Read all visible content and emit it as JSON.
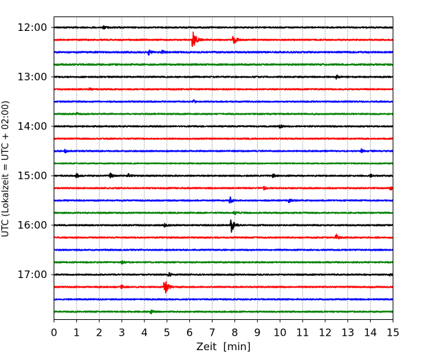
{
  "chart_data": {
    "type": "line",
    "title": "",
    "xlabel": "Zeit  [min]",
    "ylabel": "UTC (Lokalzeit = UTC + 02:00)",
    "xlim": [
      0,
      15
    ],
    "x_ticks": [
      "0",
      "1",
      "2",
      "3",
      "4",
      "5",
      "6",
      "7",
      "8",
      "9",
      "10",
      "11",
      "12",
      "13",
      "14",
      "15"
    ],
    "x_grid": true,
    "y_grid": false,
    "legend": "none",
    "y_start": "12:00",
    "trace_interval_min": 15,
    "trace_colors": [
      "#000000",
      "#ff0000",
      "#0000ff",
      "#008000"
    ],
    "y_ticks": [
      "12:00",
      "13:00",
      "14:00",
      "15:00",
      "16:00",
      "17:00"
    ],
    "series": [
      {
        "start": "12:00",
        "color": "#000000",
        "noise": 0.6,
        "events": [
          {
            "t": 2.2,
            "amp": 1.2
          }
        ]
      },
      {
        "start": "12:15",
        "color": "#ff0000",
        "noise": 0.6,
        "events": [
          {
            "t": 6.15,
            "amp": 8
          },
          {
            "t": 7.95,
            "amp": 4
          }
        ]
      },
      {
        "start": "12:30",
        "color": "#0000ff",
        "noise": 0.7,
        "events": [
          {
            "t": 4.2,
            "amp": 2.2
          },
          {
            "t": 4.8,
            "amp": 1.5
          }
        ]
      },
      {
        "start": "12:45",
        "color": "#008000",
        "noise": 0.7,
        "events": []
      },
      {
        "start": "13:00",
        "color": "#000000",
        "noise": 0.6,
        "events": [
          {
            "t": 12.5,
            "amp": 1.8
          }
        ]
      },
      {
        "start": "13:15",
        "color": "#ff0000",
        "noise": 0.6,
        "events": [
          {
            "t": 1.6,
            "amp": 1.2
          }
        ]
      },
      {
        "start": "13:30",
        "color": "#0000ff",
        "noise": 0.6,
        "events": [
          {
            "t": 6.2,
            "amp": 1.2
          }
        ]
      },
      {
        "start": "13:45",
        "color": "#008000",
        "noise": 0.6,
        "events": [
          {
            "t": 1.0,
            "amp": 1.0
          }
        ]
      },
      {
        "start": "14:00",
        "color": "#000000",
        "noise": 0.6,
        "events": [
          {
            "t": 10.0,
            "amp": 1.6
          }
        ]
      },
      {
        "start": "14:15",
        "color": "#ff0000",
        "noise": 0.6,
        "events": []
      },
      {
        "start": "14:30",
        "color": "#0000ff",
        "noise": 0.6,
        "events": [
          {
            "t": 0.5,
            "amp": 1.5
          },
          {
            "t": 13.6,
            "amp": 1.5
          }
        ]
      },
      {
        "start": "14:45",
        "color": "#008000",
        "noise": 0.5,
        "events": []
      },
      {
        "start": "15:00",
        "color": "#000000",
        "noise": 0.6,
        "events": [
          {
            "t": 1.0,
            "amp": 2.0
          },
          {
            "t": 2.5,
            "amp": 2.0
          },
          {
            "t": 3.3,
            "amp": 1.6
          },
          {
            "t": 9.7,
            "amp": 1.4
          },
          {
            "t": 14.0,
            "amp": 1.2
          }
        ]
      },
      {
        "start": "15:15",
        "color": "#ff0000",
        "noise": 0.6,
        "events": [
          {
            "t": 9.3,
            "amp": 1.4
          },
          {
            "t": 14.9,
            "amp": 1.8
          }
        ]
      },
      {
        "start": "15:30",
        "color": "#0000ff",
        "noise": 0.6,
        "events": [
          {
            "t": 7.8,
            "amp": 3.0
          },
          {
            "t": 10.4,
            "amp": 1.8
          }
        ]
      },
      {
        "start": "15:45",
        "color": "#008000",
        "noise": 0.6,
        "events": [
          {
            "t": 8.0,
            "amp": 1.4
          }
        ]
      },
      {
        "start": "16:00",
        "color": "#000000",
        "noise": 0.6,
        "events": [
          {
            "t": 4.9,
            "amp": 1.6
          },
          {
            "t": 7.85,
            "amp": 6.0
          }
        ]
      },
      {
        "start": "16:15",
        "color": "#ff0000",
        "noise": 0.6,
        "events": [
          {
            "t": 12.5,
            "amp": 2.5
          }
        ]
      },
      {
        "start": "16:30",
        "color": "#0000ff",
        "noise": 0.6,
        "events": []
      },
      {
        "start": "16:45",
        "color": "#008000",
        "noise": 0.6,
        "events": [
          {
            "t": 3.0,
            "amp": 1.2
          }
        ]
      },
      {
        "start": "17:00",
        "color": "#000000",
        "noise": 0.6,
        "events": [
          {
            "t": 5.1,
            "amp": 1.6
          },
          {
            "t": 14.9,
            "amp": 1.5
          }
        ]
      },
      {
        "start": "17:15",
        "color": "#ff0000",
        "noise": 0.6,
        "events": [
          {
            "t": 3.0,
            "amp": 1.8
          },
          {
            "t": 4.9,
            "amp": 7.0
          }
        ]
      },
      {
        "start": "17:30",
        "color": "#0000ff",
        "noise": 0.6,
        "events": []
      },
      {
        "start": "17:45",
        "color": "#008000",
        "noise": 0.6,
        "events": [
          {
            "t": 4.3,
            "amp": 2.0
          }
        ]
      }
    ]
  }
}
